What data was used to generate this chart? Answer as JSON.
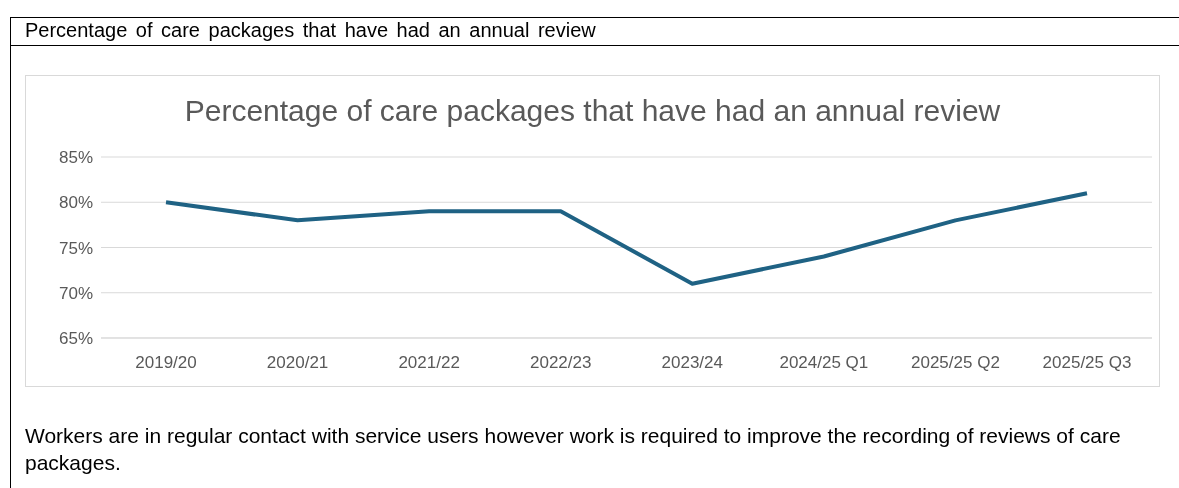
{
  "chart_data": {
    "type": "line",
    "title": "Percentage of care packages that have had an annual review",
    "categories": [
      "2019/20",
      "2020/21",
      "2021/22",
      "2022/23",
      "2023/24",
      "2024/25 Q1",
      "2025/25 Q2",
      "2025/25 Q3"
    ],
    "series": [
      {
        "color": "#1f6284",
        "values": [
          80,
          78,
          79,
          79,
          71,
          74,
          78,
          81
        ]
      }
    ],
    "ylim": [
      65,
      85
    ],
    "yticks": [
      {
        "value": 65,
        "label": "65%"
      },
      {
        "value": 70,
        "label": "70%"
      },
      {
        "value": 75,
        "label": "75%"
      },
      {
        "value": 80,
        "label": "80%"
      },
      {
        "value": 85,
        "label": "85%"
      }
    ],
    "grid": "y",
    "legend": false,
    "marker": "none",
    "line_style": "solid",
    "annotations": [
      "Percentage of care packages that have had an annual review",
      "Workers are in regular contact with service users however work is required to improve the recording of reviews of care packages."
    ]
  }
}
